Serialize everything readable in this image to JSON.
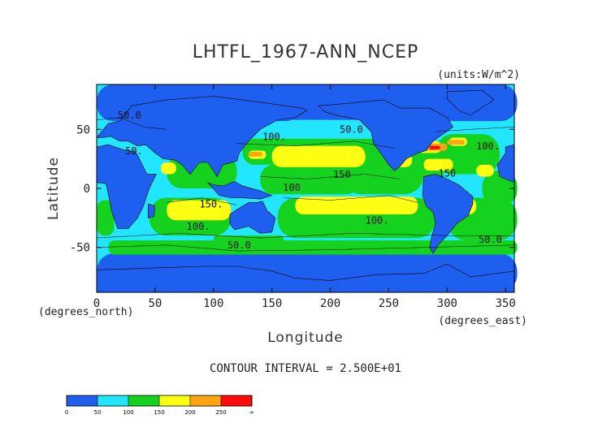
{
  "chart_data": {
    "type": "heatmap",
    "title": "LHTFL_1967-ANN_NCEP",
    "units": "(units:W/m^2)",
    "xlabel": "Longitude",
    "ylabel": "Latitude",
    "x_unit": "(degrees_east)",
    "y_unit": "(degrees_north)",
    "xlim": [
      0,
      357.5
    ],
    "ylim": [
      -88,
      88
    ],
    "x_ticks": [
      0,
      50,
      100,
      150,
      200,
      250,
      300,
      350
    ],
    "y_ticks": [
      -50,
      0,
      50
    ],
    "contour_interval_text": "CONTOUR INTERVAL = 2.500E+01",
    "colorbar": {
      "levels": [
        "0",
        "50",
        "100",
        "150",
        "200",
        "250",
        "∞"
      ],
      "colors": [
        "#1e5ff0",
        "#1e5ff0",
        "#22e6ff",
        "#22e6ff",
        "#14d21e",
        "#14d21e",
        "#ffff14",
        "#ffff14",
        "#ffa514",
        "#ffa514",
        "#ff0a0a",
        "#ff0a0a"
      ]
    },
    "contour_labels": [
      {
        "text": "50.0",
        "lon": 28,
        "lat": 59
      },
      {
        "text": "50.",
        "lon": 32,
        "lat": 29
      },
      {
        "text": "100.",
        "lon": 152,
        "lat": 41
      },
      {
        "text": "50.0",
        "lon": 218,
        "lat": 47
      },
      {
        "text": "150",
        "lon": 210,
        "lat": 9
      },
      {
        "text": "100",
        "lon": 167,
        "lat": -2
      },
      {
        "text": "150.",
        "lon": 98,
        "lat": -16
      },
      {
        "text": "100.",
        "lon": 240,
        "lat": -30
      },
      {
        "text": "100.",
        "lon": 87,
        "lat": -35
      },
      {
        "text": "150",
        "lon": 300,
        "lat": 10
      },
      {
        "text": "100.",
        "lon": 335,
        "lat": 33
      },
      {
        "text": "50.0",
        "lon": 122,
        "lat": -51
      },
      {
        "text": "50.0",
        "lon": 337,
        "lat": -46
      }
    ]
  }
}
